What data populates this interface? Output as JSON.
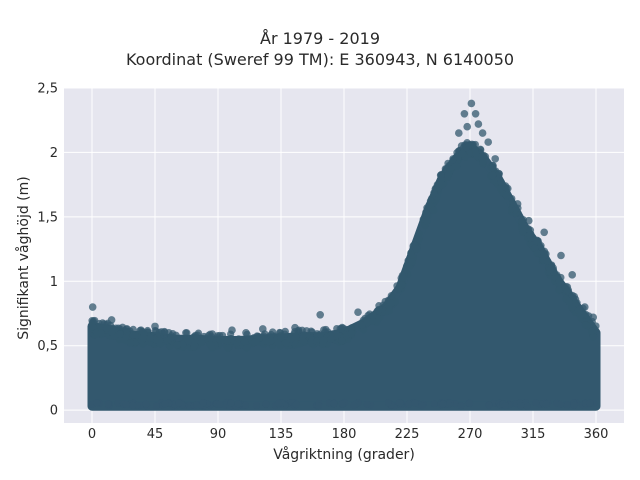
{
  "chart_data": {
    "type": "scatter",
    "title": "År 1979 - 2019",
    "subtitle": "Koordinat (Sweref 99 TM): E 360943, N 6140050",
    "xlabel": "Vågriktning (grader)",
    "ylabel": "Signifikant våghöjd (m)",
    "xlim": [
      -20,
      380
    ],
    "ylim": [
      -0.1,
      2.5
    ],
    "xticks": [
      0,
      45,
      90,
      135,
      180,
      225,
      270,
      315,
      360
    ],
    "xtick_labels": [
      "0",
      "45",
      "90",
      "135",
      "180",
      "225",
      "270",
      "315",
      "360"
    ],
    "yticks": [
      0,
      0.5,
      1,
      1.5,
      2,
      2.5
    ],
    "ytick_labels": [
      "0",
      "0,5",
      "1",
      "1,5",
      "2",
      "2,5"
    ],
    "grid": true,
    "marker_color": "#33586e",
    "series": [
      {
        "envelope_upper": [
          [
            0,
            0.65
          ],
          [
            15,
            0.62
          ],
          [
            30,
            0.58
          ],
          [
            45,
            0.57
          ],
          [
            60,
            0.55
          ],
          [
            75,
            0.55
          ],
          [
            90,
            0.54
          ],
          [
            105,
            0.54
          ],
          [
            120,
            0.55
          ],
          [
            135,
            0.56
          ],
          [
            150,
            0.57
          ],
          [
            165,
            0.57
          ],
          [
            180,
            0.6
          ],
          [
            195,
            0.68
          ],
          [
            210,
            0.8
          ],
          [
            220,
            0.95
          ],
          [
            230,
            1.25
          ],
          [
            240,
            1.55
          ],
          [
            250,
            1.8
          ],
          [
            260,
            1.95
          ],
          [
            270,
            2.05
          ],
          [
            280,
            1.95
          ],
          [
            290,
            1.8
          ],
          [
            300,
            1.6
          ],
          [
            310,
            1.4
          ],
          [
            320,
            1.25
          ],
          [
            330,
            1.05
          ],
          [
            340,
            0.9
          ],
          [
            350,
            0.75
          ],
          [
            360,
            0.6
          ]
        ],
        "envelope_lower": [
          [
            0,
            0.03
          ],
          [
            360,
            0.03
          ]
        ],
        "outliers": [
          [
            0.5,
            0.8
          ],
          [
            14,
            0.7
          ],
          [
            25,
            0.63
          ],
          [
            35,
            0.62
          ],
          [
            45,
            0.65
          ],
          [
            60,
            0.58
          ],
          [
            80,
            0.57
          ],
          [
            100,
            0.62
          ],
          [
            110,
            0.6
          ],
          [
            122,
            0.63
          ],
          [
            138,
            0.61
          ],
          [
            145,
            0.64
          ],
          [
            163,
            0.74
          ],
          [
            190,
            0.76
          ],
          [
            205,
            0.78
          ],
          [
            232,
            1.25
          ],
          [
            244,
            1.55
          ],
          [
            250,
            1.75
          ],
          [
            258,
            1.95
          ],
          [
            262,
            2.15
          ],
          [
            264,
            2.05
          ],
          [
            266,
            2.3
          ],
          [
            268,
            2.2
          ],
          [
            271,
            2.38
          ],
          [
            274,
            2.3
          ],
          [
            276,
            2.22
          ],
          [
            279,
            2.15
          ],
          [
            283,
            2.08
          ],
          [
            288,
            1.95
          ],
          [
            297,
            1.72
          ],
          [
            304,
            1.6
          ],
          [
            312,
            1.47
          ],
          [
            323,
            1.38
          ],
          [
            335,
            1.2
          ],
          [
            343,
            1.05
          ],
          [
            352,
            0.8
          ],
          [
            358,
            0.72
          ]
        ]
      }
    ]
  }
}
